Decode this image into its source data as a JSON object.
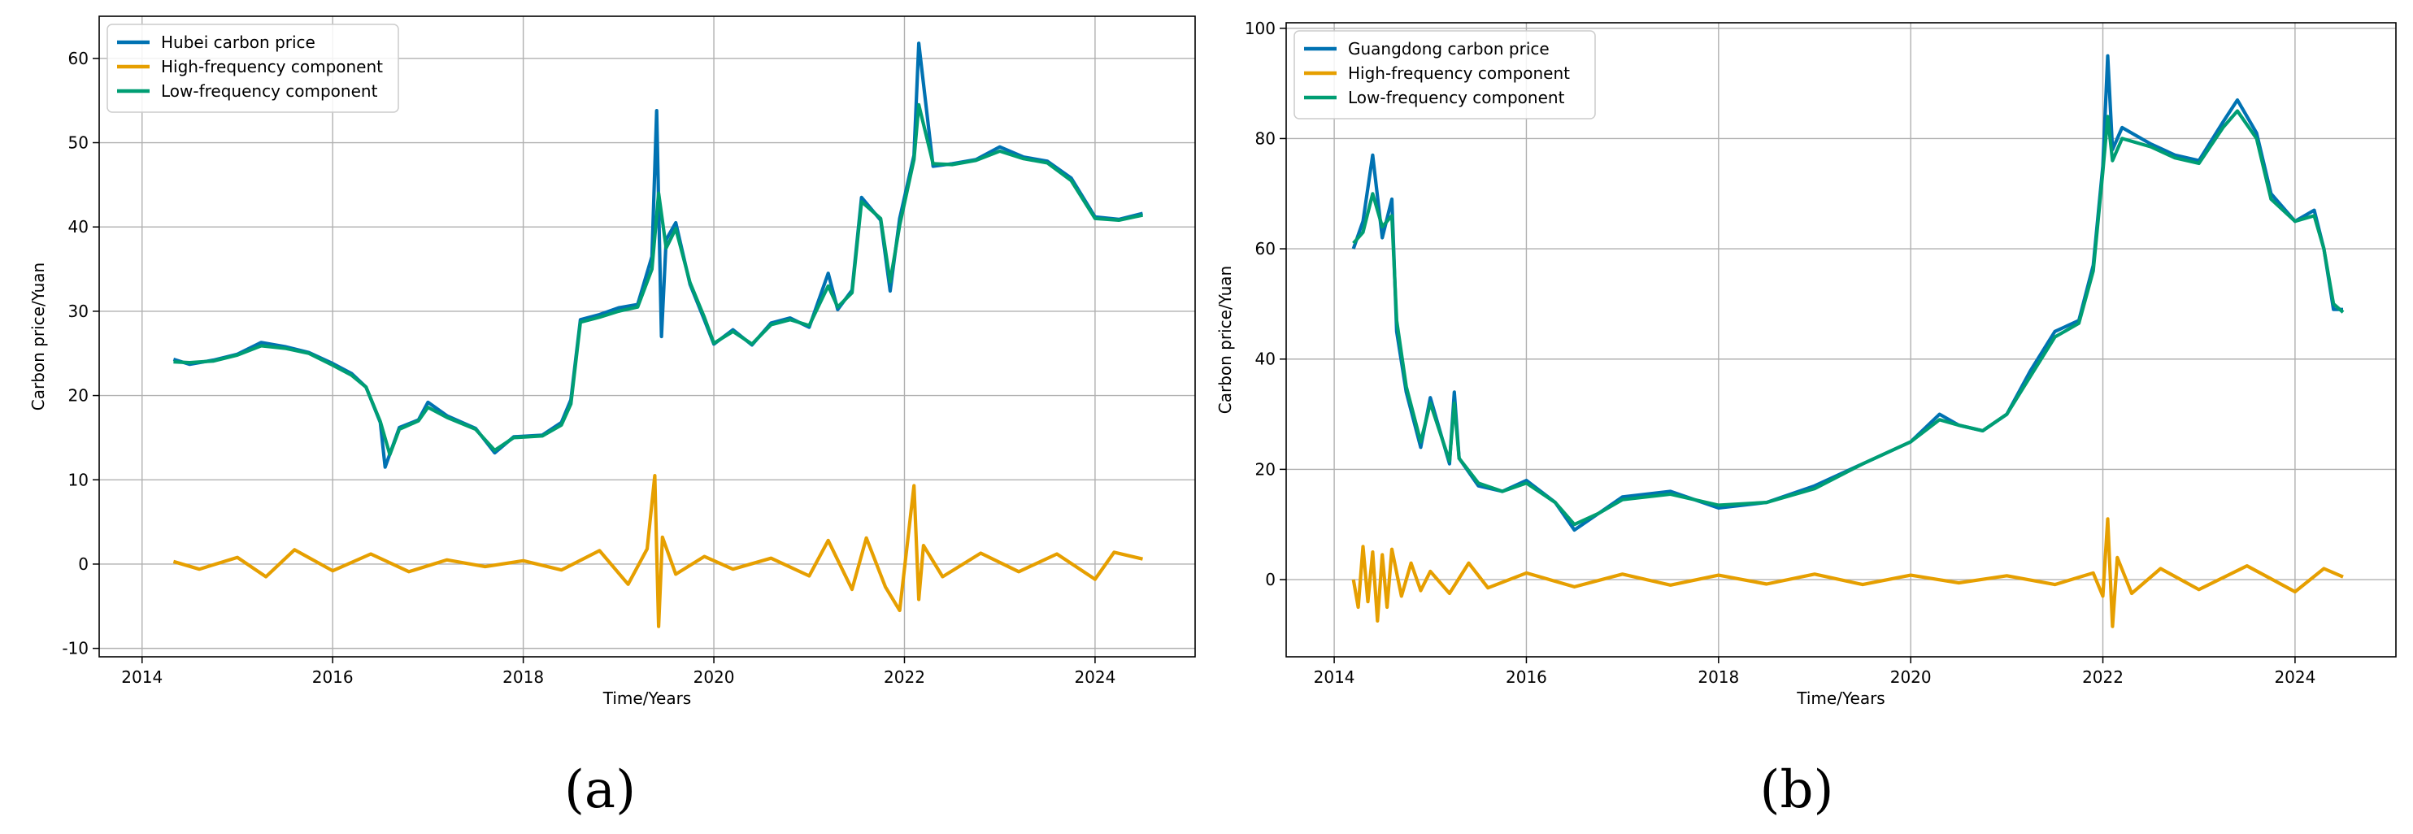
{
  "colors": {
    "price": "#0072b2",
    "high": "#e69f00",
    "low": "#009e73",
    "grid": "#b0b0b0",
    "axis": "#000000"
  },
  "chart_data": [
    {
      "type": "line",
      "caption": "(a)",
      "title": "",
      "xlabel": "Time/Years",
      "ylabel": "Carbon price/Yuan",
      "xlim": [
        2013.55,
        2025.05
      ],
      "ylim": [
        -11,
        65
      ],
      "xticks": [
        2014,
        2016,
        2018,
        2020,
        2022,
        2024
      ],
      "yticks": [
        -10,
        0,
        10,
        20,
        30,
        40,
        50,
        60
      ],
      "grid": true,
      "legend_position": "top-left",
      "series": [
        {
          "name": "Hubei carbon price",
          "role": "price",
          "x": [
            2014.33,
            2014.5,
            2014.75,
            2015.0,
            2015.25,
            2015.5,
            2015.75,
            2016.0,
            2016.2,
            2016.35,
            2016.5,
            2016.55,
            2016.7,
            2016.9,
            2017.0,
            2017.2,
            2017.5,
            2017.7,
            2017.9,
            2018.2,
            2018.4,
            2018.5,
            2018.6,
            2018.8,
            2019.0,
            2019.2,
            2019.35,
            2019.4,
            2019.45,
            2019.5,
            2019.6,
            2019.75,
            2019.9,
            2020.0,
            2020.2,
            2020.4,
            2020.6,
            2020.8,
            2021.0,
            2021.2,
            2021.3,
            2021.45,
            2021.55,
            2021.75,
            2021.85,
            2021.95,
            2022.1,
            2022.15,
            2022.3,
            2022.5,
            2022.75,
            2023.0,
            2023.25,
            2023.5,
            2023.75,
            2024.0,
            2024.25,
            2024.5
          ],
          "y": [
            24.3,
            23.7,
            24.2,
            24.9,
            26.3,
            25.8,
            25.1,
            23.8,
            22.6,
            21.0,
            16.8,
            11.5,
            16.2,
            17.1,
            19.2,
            17.6,
            16.1,
            13.2,
            15.1,
            15.3,
            16.8,
            19.5,
            29.0,
            29.6,
            30.4,
            30.8,
            36.5,
            53.8,
            27.0,
            38.5,
            40.5,
            33.2,
            29.0,
            26.1,
            27.8,
            26.0,
            28.6,
            29.2,
            28.1,
            34.5,
            30.2,
            32.5,
            43.5,
            40.8,
            32.4,
            41.0,
            48.5,
            61.8,
            47.2,
            47.5,
            48.0,
            49.5,
            48.3,
            47.8,
            45.8,
            41.2,
            40.9,
            41.6
          ]
        },
        {
          "name": "High-frequency component",
          "role": "high",
          "x": [
            2014.33,
            2014.6,
            2015.0,
            2015.3,
            2015.6,
            2016.0,
            2016.4,
            2016.8,
            2017.2,
            2017.6,
            2018.0,
            2018.4,
            2018.8,
            2019.1,
            2019.3,
            2019.38,
            2019.42,
            2019.46,
            2019.6,
            2019.9,
            2020.2,
            2020.6,
            2021.0,
            2021.2,
            2021.45,
            2021.6,
            2021.8,
            2021.95,
            2022.1,
            2022.15,
            2022.2,
            2022.4,
            2022.8,
            2023.2,
            2023.6,
            2024.0,
            2024.2,
            2024.5
          ],
          "y": [
            0.3,
            -0.6,
            0.8,
            -1.5,
            1.7,
            -0.8,
            1.2,
            -0.9,
            0.5,
            -0.3,
            0.4,
            -0.7,
            1.6,
            -2.4,
            1.8,
            10.5,
            -7.4,
            3.2,
            -1.2,
            0.9,
            -0.6,
            0.7,
            -1.4,
            2.8,
            -3.0,
            3.1,
            -2.7,
            -5.5,
            9.3,
            -4.2,
            2.2,
            -1.5,
            1.3,
            -0.9,
            1.2,
            -1.8,
            1.4,
            0.6
          ]
        },
        {
          "name": "Low-frequency component",
          "role": "low",
          "x": [
            2014.33,
            2014.5,
            2014.75,
            2015.0,
            2015.25,
            2015.5,
            2015.75,
            2016.0,
            2016.2,
            2016.35,
            2016.5,
            2016.6,
            2016.7,
            2016.9,
            2017.0,
            2017.2,
            2017.5,
            2017.7,
            2017.9,
            2018.2,
            2018.4,
            2018.5,
            2018.6,
            2018.8,
            2019.0,
            2019.2,
            2019.35,
            2019.42,
            2019.5,
            2019.6,
            2019.75,
            2019.9,
            2020.0,
            2020.2,
            2020.4,
            2020.6,
            2020.8,
            2021.0,
            2021.2,
            2021.3,
            2021.45,
            2021.55,
            2021.75,
            2021.85,
            2021.95,
            2022.1,
            2022.15,
            2022.3,
            2022.5,
            2022.75,
            2023.0,
            2023.25,
            2023.5,
            2023.75,
            2024.0,
            2024.25,
            2024.5
          ],
          "y": [
            24.0,
            23.9,
            24.1,
            24.8,
            25.9,
            25.6,
            25.0,
            23.6,
            22.4,
            21.0,
            16.9,
            13.0,
            16.0,
            17.0,
            18.6,
            17.4,
            16.0,
            13.5,
            15.0,
            15.2,
            16.5,
            19.0,
            28.7,
            29.3,
            30.0,
            30.5,
            35.0,
            44.0,
            37.5,
            39.8,
            33.4,
            29.3,
            26.2,
            27.6,
            26.1,
            28.4,
            29.0,
            28.3,
            33.0,
            30.5,
            32.2,
            43.0,
            41.0,
            33.5,
            40.2,
            48.0,
            54.5,
            47.5,
            47.4,
            47.9,
            49.0,
            48.1,
            47.6,
            45.5,
            41.0,
            40.8,
            41.4
          ]
        }
      ]
    },
    {
      "type": "line",
      "caption": "(b)",
      "title": "",
      "xlabel": "Time/Years",
      "ylabel": "Carbon price/Yuan",
      "xlim": [
        2013.5,
        2025.05
      ],
      "ylim": [
        -14,
        101
      ],
      "xticks": [
        2014,
        2016,
        2018,
        2020,
        2022,
        2024
      ],
      "yticks": [
        0,
        20,
        40,
        60,
        80,
        100
      ],
      "grid": true,
      "legend_position": "top-left",
      "series": [
        {
          "name": "Guangdong carbon price",
          "role": "price",
          "x": [
            2014.2,
            2014.3,
            2014.4,
            2014.5,
            2014.6,
            2014.65,
            2014.75,
            2014.9,
            2015.0,
            2015.2,
            2015.25,
            2015.3,
            2015.5,
            2015.75,
            2016.0,
            2016.3,
            2016.5,
            2016.75,
            2017.0,
            2017.5,
            2018.0,
            2018.5,
            2019.0,
            2019.5,
            2020.0,
            2020.3,
            2020.5,
            2020.75,
            2021.0,
            2021.25,
            2021.5,
            2021.75,
            2021.9,
            2022.0,
            2022.05,
            2022.1,
            2022.2,
            2022.5,
            2022.75,
            2023.0,
            2023.25,
            2023.4,
            2023.6,
            2023.75,
            2024.0,
            2024.2,
            2024.3,
            2024.4,
            2024.5
          ],
          "y": [
            60.0,
            65.0,
            77.0,
            62.0,
            69.0,
            45.0,
            34.0,
            24.0,
            33.0,
            21.0,
            34.0,
            22.0,
            17.0,
            16.0,
            18.0,
            14.0,
            9.0,
            12.0,
            15.0,
            16.0,
            13.0,
            14.0,
            17.0,
            21.0,
            25.0,
            30.0,
            28.0,
            27.0,
            30.0,
            38.0,
            45.0,
            47.0,
            57.0,
            75.0,
            95.0,
            78.0,
            82.0,
            79.0,
            77.0,
            76.0,
            83.0,
            87.0,
            81.0,
            70.0,
            65.0,
            67.0,
            60.0,
            49.0,
            49.0
          ]
        },
        {
          "name": "High-frequency component",
          "role": "high",
          "x": [
            2014.2,
            2014.25,
            2014.3,
            2014.35,
            2014.4,
            2014.45,
            2014.5,
            2014.55,
            2014.6,
            2014.7,
            2014.8,
            2014.9,
            2015.0,
            2015.2,
            2015.4,
            2015.6,
            2016.0,
            2016.5,
            2017.0,
            2017.5,
            2018.0,
            2018.5,
            2019.0,
            2019.5,
            2020.0,
            2020.5,
            2021.0,
            2021.5,
            2021.9,
            2022.0,
            2022.05,
            2022.1,
            2022.15,
            2022.3,
            2022.6,
            2023.0,
            2023.5,
            2024.0,
            2024.3,
            2024.5
          ],
          "y": [
            0.0,
            -5.0,
            6.0,
            -4.0,
            5.0,
            -7.5,
            4.5,
            -5.0,
            5.5,
            -3.0,
            3.0,
            -2.0,
            1.5,
            -2.5,
            3.0,
            -1.5,
            1.2,
            -1.3,
            1.0,
            -1.0,
            0.8,
            -0.8,
            1.0,
            -0.9,
            0.8,
            -0.6,
            0.7,
            -0.9,
            1.2,
            -3.0,
            11.0,
            -8.5,
            4.0,
            -2.5,
            2.0,
            -1.8,
            2.5,
            -2.2,
            2.0,
            0.5
          ]
        },
        {
          "name": "Low-frequency component",
          "role": "low",
          "x": [
            2014.2,
            2014.3,
            2014.4,
            2014.5,
            2014.6,
            2014.65,
            2014.75,
            2014.9,
            2015.0,
            2015.2,
            2015.25,
            2015.3,
            2015.5,
            2015.75,
            2016.0,
            2016.3,
            2016.5,
            2016.75,
            2017.0,
            2017.5,
            2018.0,
            2018.5,
            2019.0,
            2019.5,
            2020.0,
            2020.3,
            2020.5,
            2020.75,
            2021.0,
            2021.25,
            2021.5,
            2021.75,
            2021.9,
            2022.0,
            2022.05,
            2022.1,
            2022.2,
            2022.5,
            2022.75,
            2023.0,
            2023.25,
            2023.4,
            2023.6,
            2023.75,
            2024.0,
            2024.2,
            2024.3,
            2024.4,
            2024.5
          ],
          "y": [
            61.0,
            63.0,
            70.0,
            64.0,
            66.0,
            47.0,
            35.0,
            25.0,
            32.0,
            21.5,
            32.0,
            22.0,
            17.5,
            16.0,
            17.5,
            14.0,
            10.0,
            12.0,
            14.5,
            15.5,
            13.5,
            14.0,
            16.5,
            21.0,
            25.0,
            29.0,
            28.0,
            27.0,
            30.0,
            37.0,
            44.0,
            46.5,
            56.0,
            74.0,
            84.0,
            76.0,
            80.0,
            78.5,
            76.5,
            75.5,
            82.0,
            85.0,
            80.0,
            69.0,
            65.0,
            66.0,
            60.0,
            50.0,
            48.5
          ]
        }
      ]
    }
  ]
}
